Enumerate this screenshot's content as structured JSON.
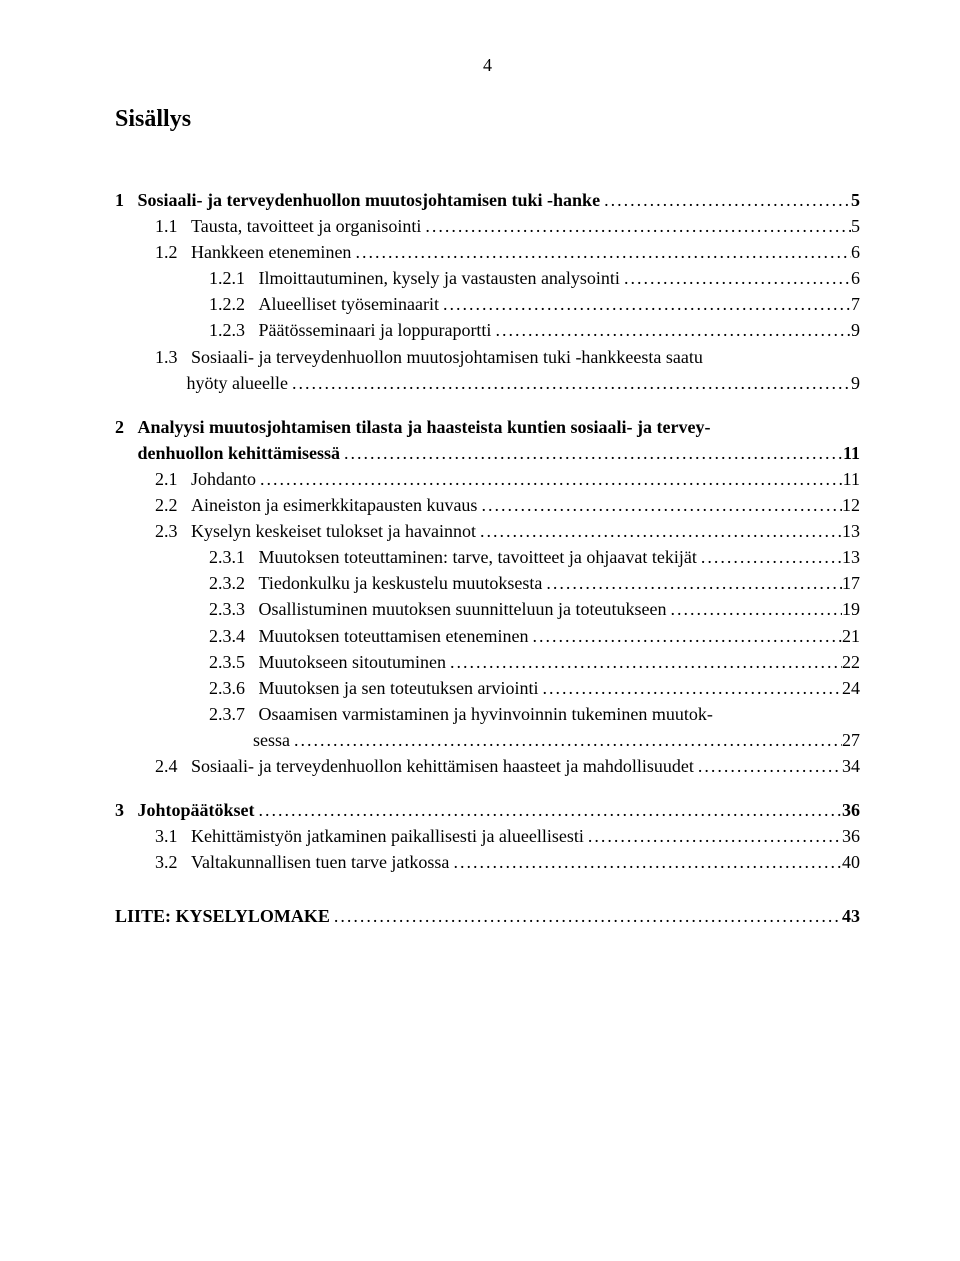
{
  "page_number": "4",
  "title": "Sisällys",
  "dots": "................................................................................................................................",
  "entries": [
    {
      "type": "space",
      "size": "md"
    },
    {
      "type": "line",
      "bold": true,
      "indent": 1,
      "num": "1   ",
      "label": "Sosiaali- ja terveydenhuollon muutosjohtamisen tuki -hanke",
      "page": " 5",
      "dotted": true
    },
    {
      "type": "line",
      "bold": false,
      "indent": 2,
      "num": "1.1   ",
      "label": "Tausta, tavoitteet ja organisointi",
      "page": " 5",
      "dotted": true
    },
    {
      "type": "line",
      "bold": false,
      "indent": 2,
      "num": "1.2   ",
      "label": "Hankkeen eteneminen",
      "page": " 6",
      "dotted": true
    },
    {
      "type": "line",
      "bold": false,
      "indent": 3,
      "num": "1.2.1   ",
      "label": "Ilmoittautuminen, kysely ja vastausten analysointi",
      "page": " 6",
      "dotted": true
    },
    {
      "type": "line",
      "bold": false,
      "indent": 3,
      "num": "1.2.2   ",
      "label": "Alueelliset työseminaarit",
      "page": " 7",
      "dotted": true
    },
    {
      "type": "line",
      "bold": false,
      "indent": 3,
      "num": "1.2.3   ",
      "label": "Päätösseminaari ja loppuraportti",
      "page": " 9",
      "dotted": true
    },
    {
      "type": "line",
      "bold": false,
      "indent": 2,
      "num": "1.3   ",
      "label": "Sosiaali- ja terveydenhuollon muutosjohtamisen tuki -hankkeesta saatu",
      "page": "",
      "dotted": false
    },
    {
      "type": "line",
      "bold": false,
      "indent": 2,
      "num": "       ",
      "label": " hyöty alueelle",
      "page": " 9",
      "dotted": true
    },
    {
      "type": "space",
      "size": "md"
    },
    {
      "type": "line",
      "bold": true,
      "indent": 1,
      "num": "2   ",
      "label": "Analyysi muutosjohtamisen tilasta ja haasteista kuntien sosiaali- ja tervey-",
      "page": "",
      "dotted": false
    },
    {
      "type": "line",
      "bold": true,
      "indent": 1,
      "num": "     ",
      "label": "denhuollon kehittämisessä",
      "page": " 11",
      "dotted": true
    },
    {
      "type": "line",
      "bold": false,
      "indent": 2,
      "num": "2.1   ",
      "label": "Johdanto",
      "page": " 11",
      "dotted": true
    },
    {
      "type": "line",
      "bold": false,
      "indent": 2,
      "num": "2.2   ",
      "label": "Aineiston ja esimerkkitapausten kuvaus",
      "page": " 12",
      "dotted": true
    },
    {
      "type": "line",
      "bold": false,
      "indent": 2,
      "num": "2.3   ",
      "label": "Kyselyn keskeiset tulokset ja havainnot",
      "page": " 13",
      "dotted": true
    },
    {
      "type": "line",
      "bold": false,
      "indent": 3,
      "num": "2.3.1   ",
      "label": "Muutoksen toteuttaminen: tarve, tavoitteet ja ohjaavat tekijät",
      "page": " 13",
      "dotted": true
    },
    {
      "type": "line",
      "bold": false,
      "indent": 3,
      "num": "2.3.2   ",
      "label": "Tiedonkulku ja keskustelu muutoksesta",
      "page": " 17",
      "dotted": true
    },
    {
      "type": "line",
      "bold": false,
      "indent": 3,
      "num": "2.3.3   ",
      "label": "Osallistuminen muutoksen suunnitteluun ja toteutukseen",
      "page": " 19",
      "dotted": true
    },
    {
      "type": "line",
      "bold": false,
      "indent": 3,
      "num": "2.3.4   ",
      "label": "Muutoksen toteuttamisen eteneminen",
      "page": " 21",
      "dotted": true
    },
    {
      "type": "line",
      "bold": false,
      "indent": 3,
      "num": "2.3.5   ",
      "label": "Muutokseen sitoutuminen",
      "page": " 22",
      "dotted": true
    },
    {
      "type": "line",
      "bold": false,
      "indent": 3,
      "num": "2.3.6   ",
      "label": "Muutoksen ja sen toteutuksen arviointi",
      "page": " 24",
      "dotted": true
    },
    {
      "type": "line",
      "bold": false,
      "indent": 3,
      "num": "2.3.7   ",
      "label": "Osaamisen varmistaminen ja hyvinvoinnin tukeminen muutok-",
      "page": "",
      "dotted": false
    },
    {
      "type": "cont",
      "bold": false,
      "num": "",
      "label": "sessa",
      "page": " 27",
      "dotted": true
    },
    {
      "type": "line",
      "bold": false,
      "indent": 2,
      "num": "2.4   ",
      "label": "Sosiaali- ja terveydenhuollon kehittämisen haasteet ja mahdollisuudet",
      "page": " 34",
      "dotted": true
    },
    {
      "type": "space",
      "size": "md"
    },
    {
      "type": "line",
      "bold": true,
      "indent": 1,
      "num": "3   ",
      "label": "Johtopäätökset",
      "page": " 36",
      "dotted": true
    },
    {
      "type": "line",
      "bold": false,
      "indent": 2,
      "num": "3.1   ",
      "label": "Kehittämistyön jatkaminen paikallisesti ja alueellisesti",
      "page": " 36",
      "dotted": true
    },
    {
      "type": "line",
      "bold": false,
      "indent": 2,
      "num": "3.2   ",
      "label": "Valtakunnallisen tuen tarve jatkossa",
      "page": " 40",
      "dotted": true
    }
  ],
  "appendix": {
    "label": "LIITE: KYSELYLOMAKE",
    "page": " 43"
  }
}
